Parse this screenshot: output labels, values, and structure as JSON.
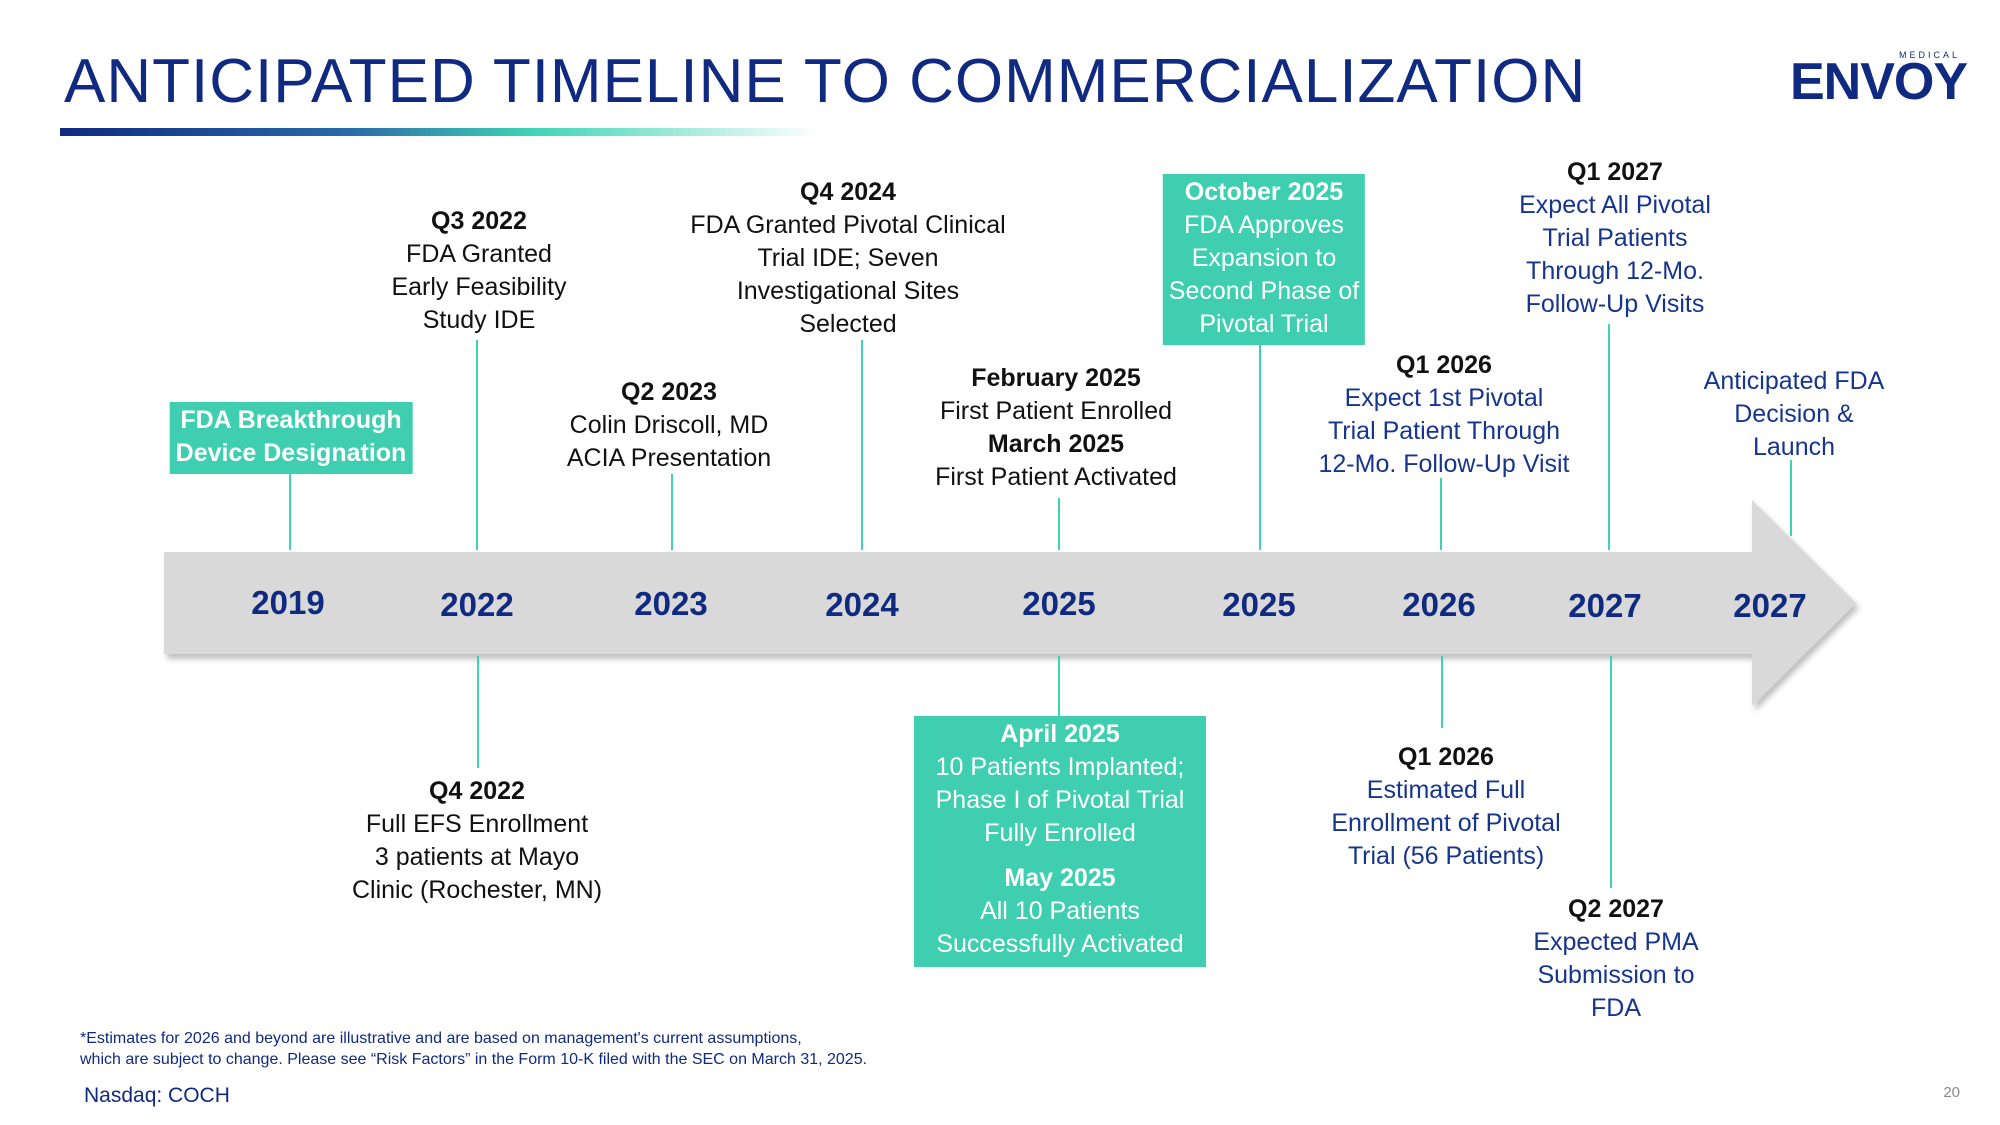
{
  "title": "ANTICIPATED TIMELINE TO COMMERCIALIZATION",
  "logo": {
    "small": "MEDICAL",
    "main": "ENVOY"
  },
  "years": [
    "2019",
    "2022",
    "2023",
    "2024",
    "2025",
    "2025",
    "2026",
    "2027",
    "2027"
  ],
  "events": {
    "e2019": {
      "lines": [
        "FDA Breakthrough",
        "Device Designation"
      ]
    },
    "q3_2022": {
      "head": "Q3 2022",
      "lines": [
        "FDA Granted",
        "Early Feasibility",
        "Study IDE"
      ]
    },
    "q2_2023": {
      "head": "Q2 2023",
      "lines": [
        "Colin Driscoll, MD",
        "ACIA Presentation"
      ]
    },
    "q4_2024": {
      "head": "Q4 2024",
      "lines": [
        "FDA Granted Pivotal Clinical",
        "Trial IDE; Seven",
        "Investigational Sites",
        "Selected"
      ]
    },
    "feb_2025": {
      "head": "February 2025",
      "line1": "First Patient Enrolled",
      "head2": "March 2025",
      "line2": "First Patient Activated"
    },
    "oct_2025": {
      "head": "October 2025",
      "lines": [
        "FDA Approves",
        "Expansion to",
        "Second Phase of",
        "Pivotal Trial"
      ]
    },
    "q1_2026_top": {
      "head": "Q1 2026",
      "lines": [
        "Expect 1st Pivotal",
        "Trial Patient Through",
        "12-Mo. Follow-Up Visit"
      ]
    },
    "q1_2027": {
      "head": "Q1 2027",
      "lines": [
        "Expect All Pivotal",
        "Trial Patients",
        "Through 12-Mo.",
        "Follow-Up Visits"
      ]
    },
    "fda_decision": {
      "lines": [
        "Anticipated FDA",
        "Decision &",
        "Launch"
      ]
    },
    "q4_2022": {
      "head": "Q4 2022",
      "lines": [
        "Full EFS Enrollment",
        "3 patients at Mayo",
        "Clinic (Rochester, MN)"
      ]
    },
    "apr_2025": {
      "head": "April 2025",
      "lines": [
        "10 Patients Implanted;",
        "Phase I of Pivotal Trial",
        "Fully Enrolled"
      ],
      "head2": "May 2025",
      "lines2": [
        "All 10 Patients",
        "Successfully Activated"
      ]
    },
    "q1_2026_bot": {
      "head": "Q1 2026",
      "lines": [
        "Estimated Full",
        "Enrollment of Pivotal",
        "Trial (56 Patients)"
      ]
    },
    "q2_2027": {
      "head": "Q2 2027",
      "lines": [
        "Expected PMA",
        "Submission to",
        "FDA"
      ]
    }
  },
  "footnote": [
    "*Estimates for 2026 and beyond are illustrative and are based on management's current assumptions,",
    "which are subject to change. Please see “Risk Factors” in the Form 10-K filed with the SEC on March 31, 2025."
  ],
  "ticker": "Nasdaq: COCH",
  "page_number": "20",
  "colors": {
    "navy": "#0f2a80",
    "teal": "#3fcfb0",
    "arrow": "#d9d9d9"
  }
}
